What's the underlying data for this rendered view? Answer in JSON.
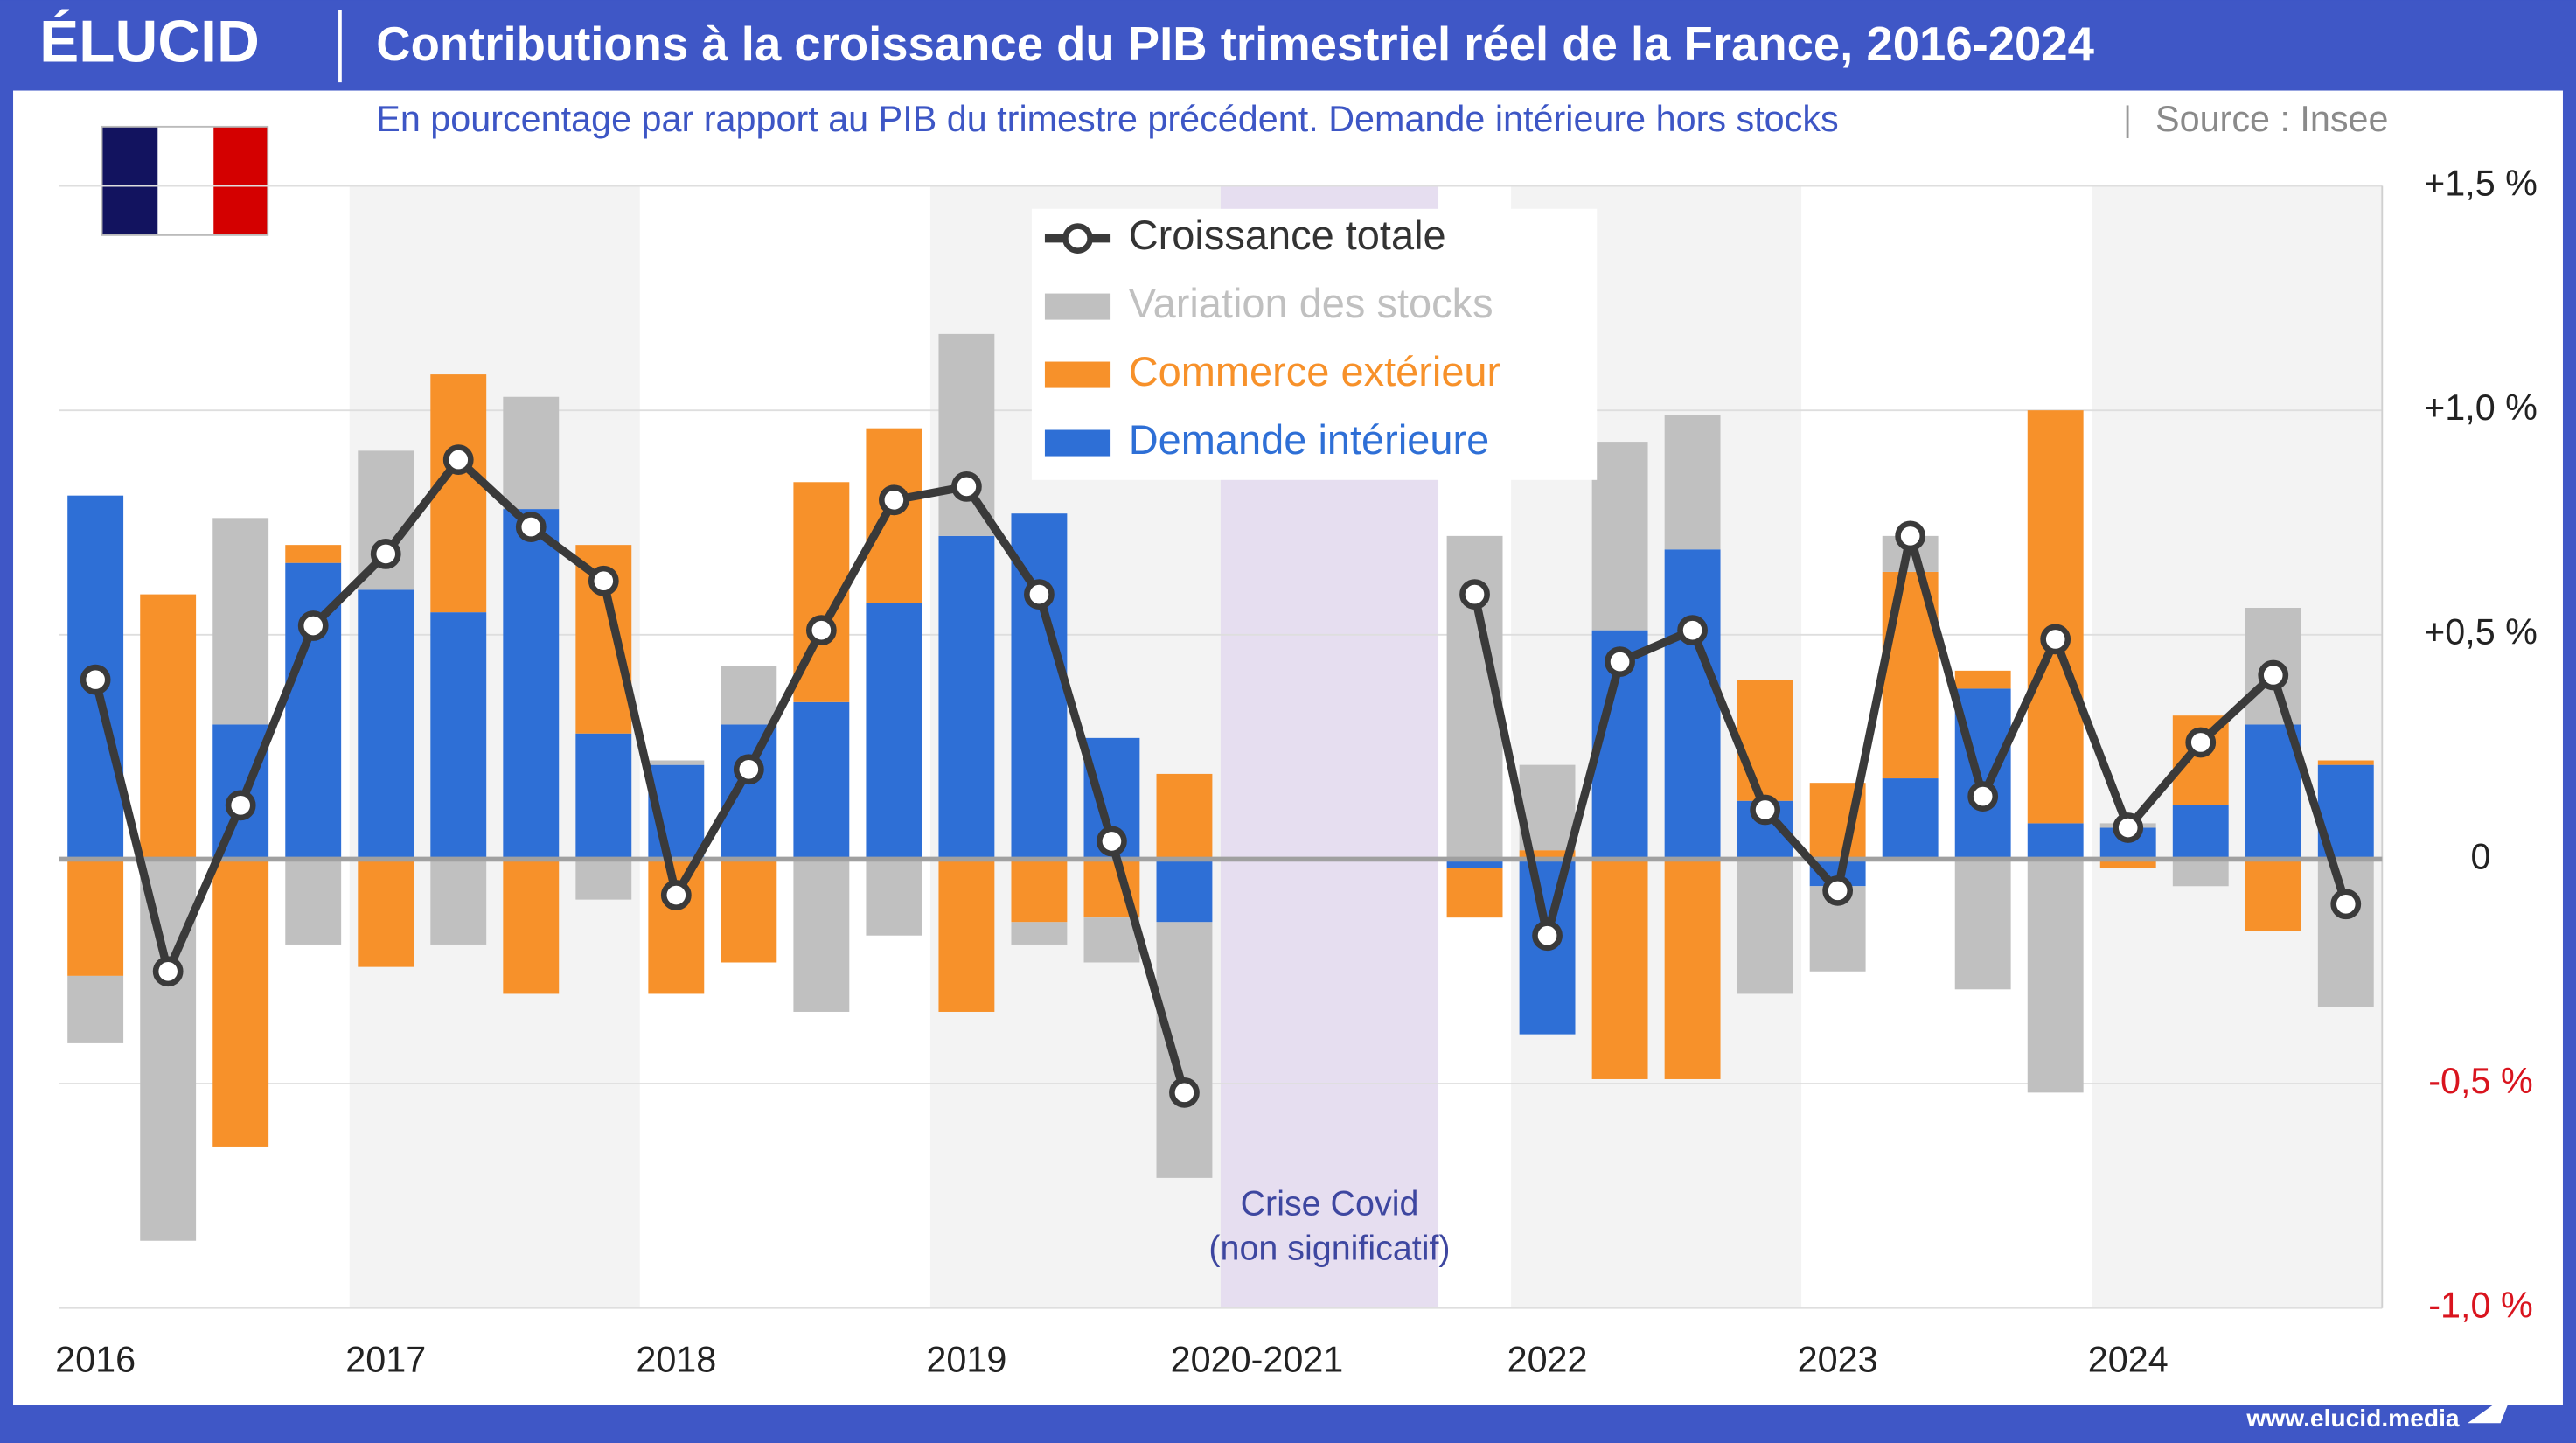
{
  "chart_data": {
    "type": "bar",
    "logo": "ÉLUCID",
    "title": "Contributions à la croissance du PIB trimestriel réel de la France, 2016-2024",
    "subtitle": "En pourcentage par rapport au PIB du trimestre précédent. Demande intérieure hors stocks",
    "source": "Source : Insee",
    "footer": "www.elucid.media",
    "annotation": [
      "Crise Covid",
      "(non significatif)"
    ],
    "categories": [
      "2016",
      null,
      null,
      null,
      "2017",
      null,
      null,
      null,
      "2018",
      null,
      null,
      null,
      "2019",
      null,
      null,
      null,
      "2020-2021",
      null,
      null,
      null,
      "2022",
      null,
      null,
      null,
      "2023",
      null,
      null,
      null,
      "2024",
      null,
      null,
      null
    ],
    "series": [
      {
        "name": "Croissance totale",
        "kind": "line",
        "color": "#3a3a3a",
        "values": [
          0.4,
          -0.25,
          0.12,
          0.52,
          0.68,
          0.89,
          0.74,
          0.62,
          -0.08,
          0.2,
          0.51,
          0.8,
          0.83,
          0.59,
          0.04,
          -0.52,
          null,
          null,
          null,
          0.59,
          -0.17,
          0.44,
          0.51,
          0.11,
          -0.07,
          0.72,
          0.14,
          0.49,
          0.07,
          0.26,
          0.41,
          -0.1
        ]
      },
      {
        "name": "Variation des stocks",
        "kind": "bar",
        "color": "#c0c0c0",
        "values": [
          -0.15,
          -0.85,
          0.46,
          -0.19,
          0.31,
          -0.19,
          0.25,
          -0.09,
          0.01,
          0.13,
          -0.34,
          -0.17,
          0.45,
          -0.05,
          -0.1,
          -0.57,
          null,
          null,
          null,
          0.72,
          0.19,
          0.42,
          0.3,
          -0.3,
          -0.19,
          0.08,
          -0.29,
          -0.52,
          0.01,
          -0.06,
          0.26,
          -0.33
        ]
      },
      {
        "name": "Commerce extérieur",
        "kind": "bar",
        "color": "#f7912a",
        "values": [
          -0.26,
          0.59,
          -0.64,
          0.04,
          -0.24,
          0.53,
          -0.3,
          0.42,
          -0.3,
          -0.23,
          0.49,
          0.39,
          -0.34,
          -0.14,
          -0.13,
          0.19,
          null,
          null,
          null,
          -0.11,
          0.02,
          -0.49,
          -0.49,
          0.27,
          0.17,
          0.46,
          0.04,
          0.92,
          -0.02,
          0.2,
          -0.16,
          0.01
        ]
      },
      {
        "name": "Demande intérieure",
        "kind": "bar",
        "color": "#2e6fd6",
        "values": [
          0.81,
          0,
          0.3,
          0.66,
          0.6,
          0.55,
          0.78,
          0.28,
          0.21,
          0.3,
          0.35,
          0.57,
          0.72,
          0.77,
          0.27,
          -0.14,
          null,
          null,
          null,
          -0.02,
          -0.39,
          0.51,
          0.69,
          0.13,
          -0.06,
          0.18,
          0.38,
          0.08,
          0.07,
          0.12,
          0.3,
          0.21
        ]
      }
    ],
    "ylim": [
      -1,
      1.5
    ],
    "yticks": [
      {
        "value": -1,
        "label": "-1,0 %"
      },
      {
        "value": -0.5,
        "label": "-0,5 %"
      },
      0,
      {
        "value": 0.5,
        "label": "+0,5 %"
      },
      {
        "value": 1,
        "label": "+1,0 %"
      },
      {
        "value": 1.5,
        "label": "+1,5 %"
      }
    ],
    "negative_tick_color": "#d9141e",
    "grid": true,
    "alternate_year_shading": true,
    "legend": "top"
  }
}
